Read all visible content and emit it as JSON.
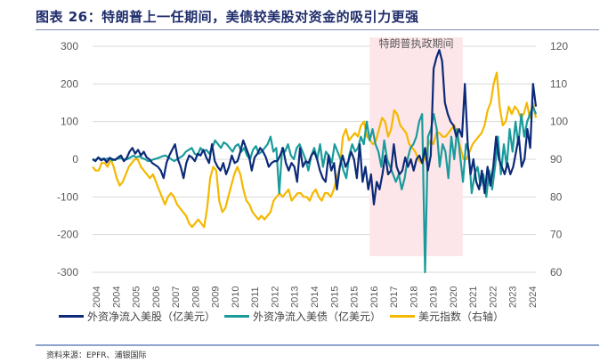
{
  "title": "图表 26：特朗普上一任期间，美债较美股对资金的吸引力更强",
  "source": "资料来源：EPFR、浦银国际",
  "chart_data": {
    "type": "line",
    "title": "图表 26：特朗普上一任期间，美债较美股对资金的吸引力更强",
    "xlabel": "",
    "ylabel_left": "亿美元",
    "ylabel_right": "美元指数",
    "x_tick_labels": [
      "2004",
      "2004",
      "2005",
      "2006",
      "2007",
      "2008",
      "2009",
      "2010",
      "2011",
      "2012",
      "2013",
      "2014",
      "2015",
      "2015",
      "2016",
      "2017",
      "2018",
      "2019",
      "2020",
      "2021",
      "2022",
      "2023",
      "2024"
    ],
    "ylim_left": [
      -300,
      300
    ],
    "yticks_left": [
      300,
      200,
      100,
      0,
      -100,
      -200,
      -300
    ],
    "ylim_right": [
      60,
      120
    ],
    "yticks_right": [
      120,
      110,
      100,
      90,
      80,
      70,
      60
    ],
    "grid": true,
    "legend_position": "bottom",
    "annotation": {
      "text": "特朗普执政期间",
      "start_fraction": 0.625,
      "end_fraction": 0.835,
      "color": "#fde6ea"
    },
    "series": [
      {
        "name": "外资净流入美股（亿美元）",
        "axis": "left",
        "color": "#0c2a78",
        "values": [
          0,
          -5,
          5,
          -3,
          2,
          -8,
          4,
          0,
          -2,
          5,
          10,
          -5,
          3,
          20,
          30,
          15,
          25,
          10,
          20,
          5,
          0,
          -10,
          -15,
          -20,
          -30,
          -50,
          -10,
          10,
          25,
          40,
          0,
          -20,
          -50,
          -10,
          10,
          5,
          -5,
          15,
          10,
          25,
          5,
          -10,
          40,
          -5,
          -20,
          -30,
          -10,
          -40,
          -20,
          10,
          -10,
          -5,
          20,
          50,
          30,
          10,
          -30,
          5,
          15,
          30,
          20,
          5,
          -20,
          -10,
          -5,
          -5,
          10,
          30,
          -10,
          -30,
          -10,
          -20,
          -60,
          30,
          -20,
          -5,
          -10,
          10,
          20,
          0,
          -30,
          -50,
          -60,
          10,
          -30,
          -10,
          -80,
          -20,
          10,
          -20,
          -5,
          20,
          0,
          -50,
          40,
          -60,
          -20,
          -80,
          -40,
          -120,
          -60,
          -80,
          -40,
          10,
          -40,
          -30,
          40,
          -20,
          -40,
          -30,
          5,
          -20,
          0,
          -30,
          0,
          10,
          -10,
          30,
          -30,
          10,
          240,
          270,
          290,
          260,
          150,
          120,
          100,
          90,
          60,
          80,
          60,
          200,
          40,
          -40,
          0,
          -60,
          -80,
          -30,
          -90,
          -20,
          -70,
          -20,
          60,
          0,
          -20,
          -40,
          -10,
          -40,
          -20,
          20,
          60,
          -20,
          0,
          80,
          30,
          200,
          140
        ]
      },
      {
        "name": "外资净流入美债（亿美元）",
        "axis": "left",
        "color": "#1a9b9b",
        "values": [
          0,
          -2,
          3,
          1,
          -1,
          2,
          0,
          -3,
          1,
          2,
          3,
          -2,
          1,
          5,
          10,
          5,
          8,
          3,
          0,
          -5,
          -3,
          0,
          2,
          5,
          8,
          10,
          5,
          0,
          -5,
          0,
          5,
          10,
          20,
          25,
          30,
          15,
          10,
          30,
          20,
          25,
          15,
          30,
          50,
          40,
          30,
          45,
          40,
          30,
          20,
          35,
          40,
          20,
          30,
          10,
          0,
          25,
          35,
          15,
          20,
          30,
          40,
          60,
          20,
          30,
          -90,
          30,
          20,
          40,
          10,
          0,
          30,
          40,
          20,
          0,
          -30,
          10,
          30,
          0,
          40,
          -20,
          20,
          10,
          -10,
          40,
          20,
          0,
          -30,
          -50,
          10,
          40,
          20,
          30,
          60,
          40,
          100,
          50,
          80,
          40,
          20,
          -20,
          50,
          0,
          -20,
          -40,
          -60,
          -40,
          -80,
          -50,
          0,
          30,
          40,
          60,
          100,
          120,
          -300,
          60,
          80,
          120,
          80,
          -20,
          40,
          20,
          -50,
          60,
          0,
          80,
          10,
          -60,
          40,
          20,
          -90,
          -40,
          -20,
          -70,
          -40,
          -100,
          -30,
          -80,
          -20,
          60,
          -40,
          40,
          -20,
          80,
          20,
          100,
          40,
          120,
          60,
          100,
          120,
          140,
          120
        ]
      },
      {
        "name": "美元指数（右轴）",
        "axis": "right",
        "color": "#f5b800",
        "values": [
          88,
          87,
          87,
          89,
          89,
          88,
          90,
          88,
          85,
          83,
          84,
          86,
          88,
          89,
          90,
          90,
          88,
          87,
          86,
          85,
          86,
          84,
          82,
          80,
          78,
          80,
          81,
          80,
          78,
          77,
          76,
          75,
          73,
          72,
          73,
          74,
          73,
          72,
          77,
          85,
          88,
          87,
          79,
          76,
          77,
          80,
          83,
          86,
          88,
          86,
          82,
          79,
          78,
          76,
          75,
          74,
          75,
          74,
          75,
          76,
          79,
          80,
          81,
          80,
          81,
          82,
          79,
          80,
          81,
          81,
          80,
          80,
          79,
          81,
          82,
          80,
          79,
          81,
          81,
          80,
          82,
          85,
          88,
          96,
          98,
          95,
          96,
          97,
          96,
          99,
          100,
          96,
          95,
          94,
          95,
          98,
          101,
          100,
          96,
          98,
          103,
          102,
          99,
          98,
          97,
          94,
          93,
          92,
          90,
          89,
          90,
          93,
          95,
          94,
          97,
          97,
          96,
          96,
          97,
          98,
          99,
          96,
          93,
          90,
          90,
          92,
          94,
          95,
          96,
          97,
          99,
          103,
          105,
          110,
          113,
          104,
          99,
          100,
          104,
          102,
          104,
          103,
          101,
          102,
          105,
          101,
          105,
          101
        ]
      }
    ]
  }
}
